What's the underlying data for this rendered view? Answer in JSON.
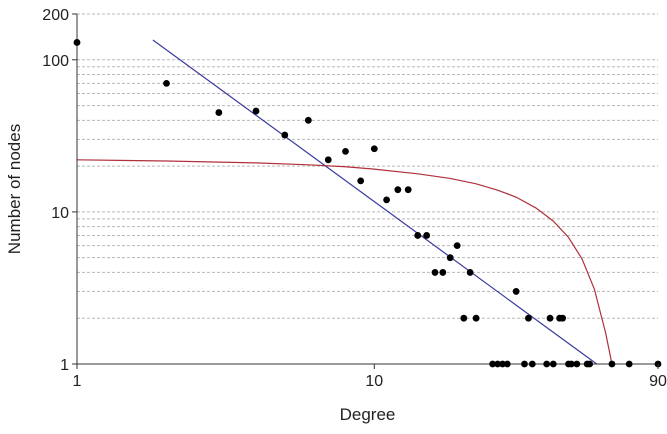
{
  "chart_data": {
    "type": "scatter",
    "title": "",
    "xlabel": "Degree",
    "ylabel": "Number of nodes",
    "x_scale": "log",
    "y_scale": "log",
    "xlim": [
      1,
      90
    ],
    "ylim": [
      1,
      200
    ],
    "x_ticks": [
      {
        "value": 1,
        "label": "1"
      },
      {
        "value": 10,
        "label": "10"
      },
      {
        "value": 90,
        "label": "90"
      }
    ],
    "y_ticks": [
      {
        "value": 1,
        "label": "1"
      },
      {
        "value": 10,
        "label": "10"
      },
      {
        "value": 100,
        "label": "100"
      },
      {
        "value": 200,
        "label": "200"
      }
    ],
    "grid": "horizontal dashed minor gridlines",
    "legend": "none",
    "colors": {
      "points": "#000000",
      "linear_fit": "#3a3aa0",
      "curve_fit": "#b0303c",
      "grid": "#b8b8b8",
      "axis": "#333333"
    },
    "series": [
      {
        "kind": "points",
        "x": [
          1,
          2,
          3,
          4,
          5,
          6,
          7,
          8,
          9,
          10,
          11,
          12,
          13,
          14,
          15,
          16,
          17,
          18,
          19,
          20,
          21,
          22,
          25,
          26,
          27,
          28,
          30,
          32,
          33,
          34,
          38,
          39,
          40,
          42,
          43,
          45,
          46,
          48,
          52,
          53,
          63,
          72,
          90
        ],
        "y": [
          130,
          70,
          45,
          46,
          32,
          40,
          22,
          25,
          16,
          26,
          12,
          14,
          14,
          7,
          7,
          4,
          4,
          5,
          6,
          2,
          4,
          2,
          1,
          1,
          1,
          1,
          3,
          1,
          2,
          1,
          1,
          2,
          1,
          2,
          2,
          1,
          1,
          1,
          1,
          1,
          1,
          1,
          1
        ]
      },
      {
        "kind": "line",
        "x": [
          1.8,
          56
        ],
        "y": [
          135,
          1
        ]
      },
      {
        "kind": "line",
        "x": [
          1,
          2,
          4,
          6,
          8,
          10,
          14,
          18,
          22,
          26,
          30,
          35,
          40,
          45,
          50,
          55,
          60,
          63
        ],
        "y": [
          22,
          21.6,
          21,
          20.4,
          19.8,
          19.1,
          17.8,
          16.6,
          15.3,
          13.9,
          12.5,
          10.6,
          8.7,
          6.8,
          4.9,
          3.1,
          1.6,
          1
        ]
      }
    ]
  }
}
